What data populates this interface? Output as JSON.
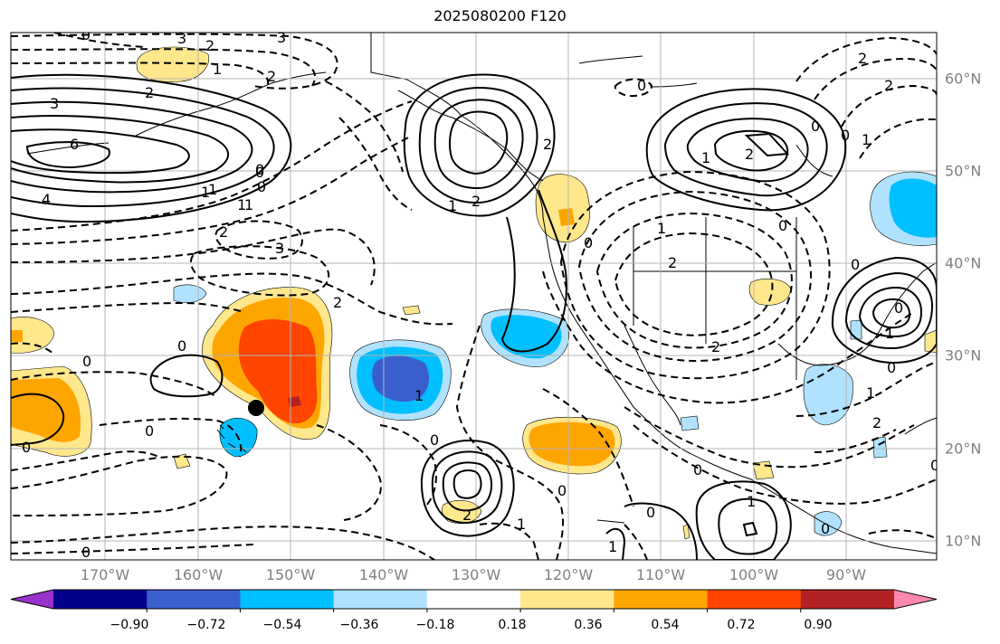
{
  "title": "2025080200 F120",
  "lon_labels": [
    "170°W",
    "160°W",
    "150°W",
    "140°W",
    "130°W",
    "120°W",
    "110°W",
    "100°W",
    "90°W"
  ],
  "lat_labels": [
    "60°N",
    "50°N",
    "40°N",
    "30°N",
    "20°N",
    "10°N"
  ],
  "colorbar": {
    "colors": [
      "#9932cc",
      "#00008b",
      "#3a5fcd",
      "#00bfff",
      "#b0e2ff",
      "#ffffff",
      "#ffe78c",
      "#ffa500",
      "#ff4500",
      "#b22222",
      "#ff88b0"
    ],
    "tick_labels": [
      "−0.90",
      "−0.72",
      "−0.54",
      "−0.36",
      "−0.18",
      "0.18",
      "0.36",
      "0.54",
      "0.72",
      "0.90"
    ]
  },
  "contour_labels": [
    "3",
    "2",
    "1",
    "3",
    "2",
    "0",
    "6",
    "3",
    "2",
    "1",
    "0",
    "1",
    "2",
    "1",
    "0",
    "2",
    "4",
    "1",
    "0",
    "1",
    "2",
    "3",
    "0",
    "2",
    "0",
    "2",
    "1",
    "1",
    "0",
    "1",
    "0",
    "2",
    "0",
    "2",
    "0",
    "0",
    "0",
    "0",
    "1",
    "0",
    "1",
    "0",
    "0",
    "0",
    "0",
    "1",
    "2",
    "0",
    "0",
    "0",
    "1",
    "0",
    "2",
    "2",
    "0",
    "2",
    "1",
    "1"
  ]
}
